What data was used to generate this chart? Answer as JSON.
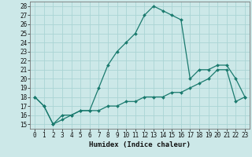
{
  "xlabel": "Humidex (Indice chaleur)",
  "background_color": "#cce8e8",
  "line_color": "#1a7a6e",
  "xlim": [
    -0.5,
    23.5
  ],
  "ylim": [
    14.5,
    28.5
  ],
  "yticks": [
    15,
    16,
    17,
    18,
    19,
    20,
    21,
    22,
    23,
    24,
    25,
    26,
    27,
    28
  ],
  "xticks": [
    0,
    1,
    2,
    3,
    4,
    5,
    6,
    7,
    8,
    9,
    10,
    11,
    12,
    13,
    14,
    15,
    16,
    17,
    18,
    19,
    20,
    21,
    22,
    23
  ],
  "xtick_labels": [
    "0",
    "1",
    "2",
    "3",
    "4",
    "5",
    "6",
    "7",
    "8",
    "9",
    "10",
    "11",
    "12",
    "13",
    "14",
    "15",
    "16",
    "17",
    "18",
    "19",
    "20",
    "21",
    "22",
    "23"
  ],
  "line1_x": [
    0,
    1,
    2,
    3,
    4,
    5,
    6,
    7,
    8,
    9,
    10,
    11,
    12,
    13,
    14,
    15,
    16,
    17,
    18,
    19,
    20,
    21,
    22,
    23
  ],
  "line1_y": [
    18.0,
    17.0,
    15.0,
    16.0,
    16.0,
    16.5,
    16.5,
    19.0,
    21.5,
    23.0,
    24.0,
    25.0,
    27.0,
    28.0,
    27.5,
    27.0,
    26.5,
    20.0,
    21.0,
    21.0,
    21.5,
    21.5,
    20.0,
    18.0
  ],
  "line2_x": [
    0,
    1,
    2,
    3,
    4,
    5,
    6,
    7,
    8,
    9,
    10,
    11,
    12,
    13,
    14,
    15,
    16,
    17,
    18,
    19,
    20,
    21,
    22,
    23
  ],
  "line2_y": [
    18.0,
    17.0,
    15.0,
    15.5,
    16.0,
    16.5,
    16.5,
    16.5,
    17.0,
    17.0,
    17.5,
    17.5,
    18.0,
    18.0,
    18.0,
    18.5,
    18.5,
    19.0,
    19.5,
    20.0,
    21.0,
    21.0,
    17.5,
    18.0
  ],
  "grid_color": "#aad4d4",
  "tick_fontsize": 5.5,
  "xlabel_fontsize": 6.5
}
